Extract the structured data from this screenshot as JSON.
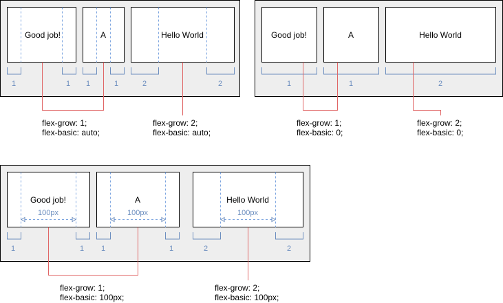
{
  "panels": [
    {
      "id": "auto",
      "items": [
        {
          "label": "Good job!",
          "shares": [
            "1",
            "1"
          ],
          "basis": ""
        },
        {
          "label": "A",
          "shares": [
            "1",
            "1"
          ],
          "basis": ""
        },
        {
          "label": "Hello World",
          "shares": [
            "2",
            "2"
          ],
          "basis": ""
        }
      ],
      "notes": [
        {
          "grow": "flex-grow: 1;",
          "basic": "flex-basic: auto;"
        },
        {
          "grow": "flex-grow: 2;",
          "basic": "flex-basic: auto;"
        }
      ]
    },
    {
      "id": "zero",
      "items": [
        {
          "label": "Good job!",
          "shares": [
            "1"
          ],
          "basis": ""
        },
        {
          "label": "A",
          "shares": [
            "1"
          ],
          "basis": ""
        },
        {
          "label": "Hello World",
          "shares": [
            "2"
          ],
          "basis": ""
        }
      ],
      "notes": [
        {
          "grow": "flex-grow: 1;",
          "basic": "flex-basic: 0;"
        },
        {
          "grow": "flex-grow: 2;",
          "basic": "flex-basic: 0;"
        }
      ]
    },
    {
      "id": "px",
      "items": [
        {
          "label": "Good job!",
          "shares": [
            "1",
            "1"
          ],
          "basis": "100px"
        },
        {
          "label": "A",
          "shares": [
            "1",
            "1"
          ],
          "basis": "100px"
        },
        {
          "label": "Hello World",
          "shares": [
            "2",
            "2"
          ],
          "basis": "100px"
        }
      ],
      "notes": [
        {
          "grow": "flex-grow: 1;",
          "basic": "flex-basic: 100px;"
        },
        {
          "grow": "flex-grow: 2;",
          "basic": "flex-basic: 100px;"
        }
      ]
    }
  ]
}
